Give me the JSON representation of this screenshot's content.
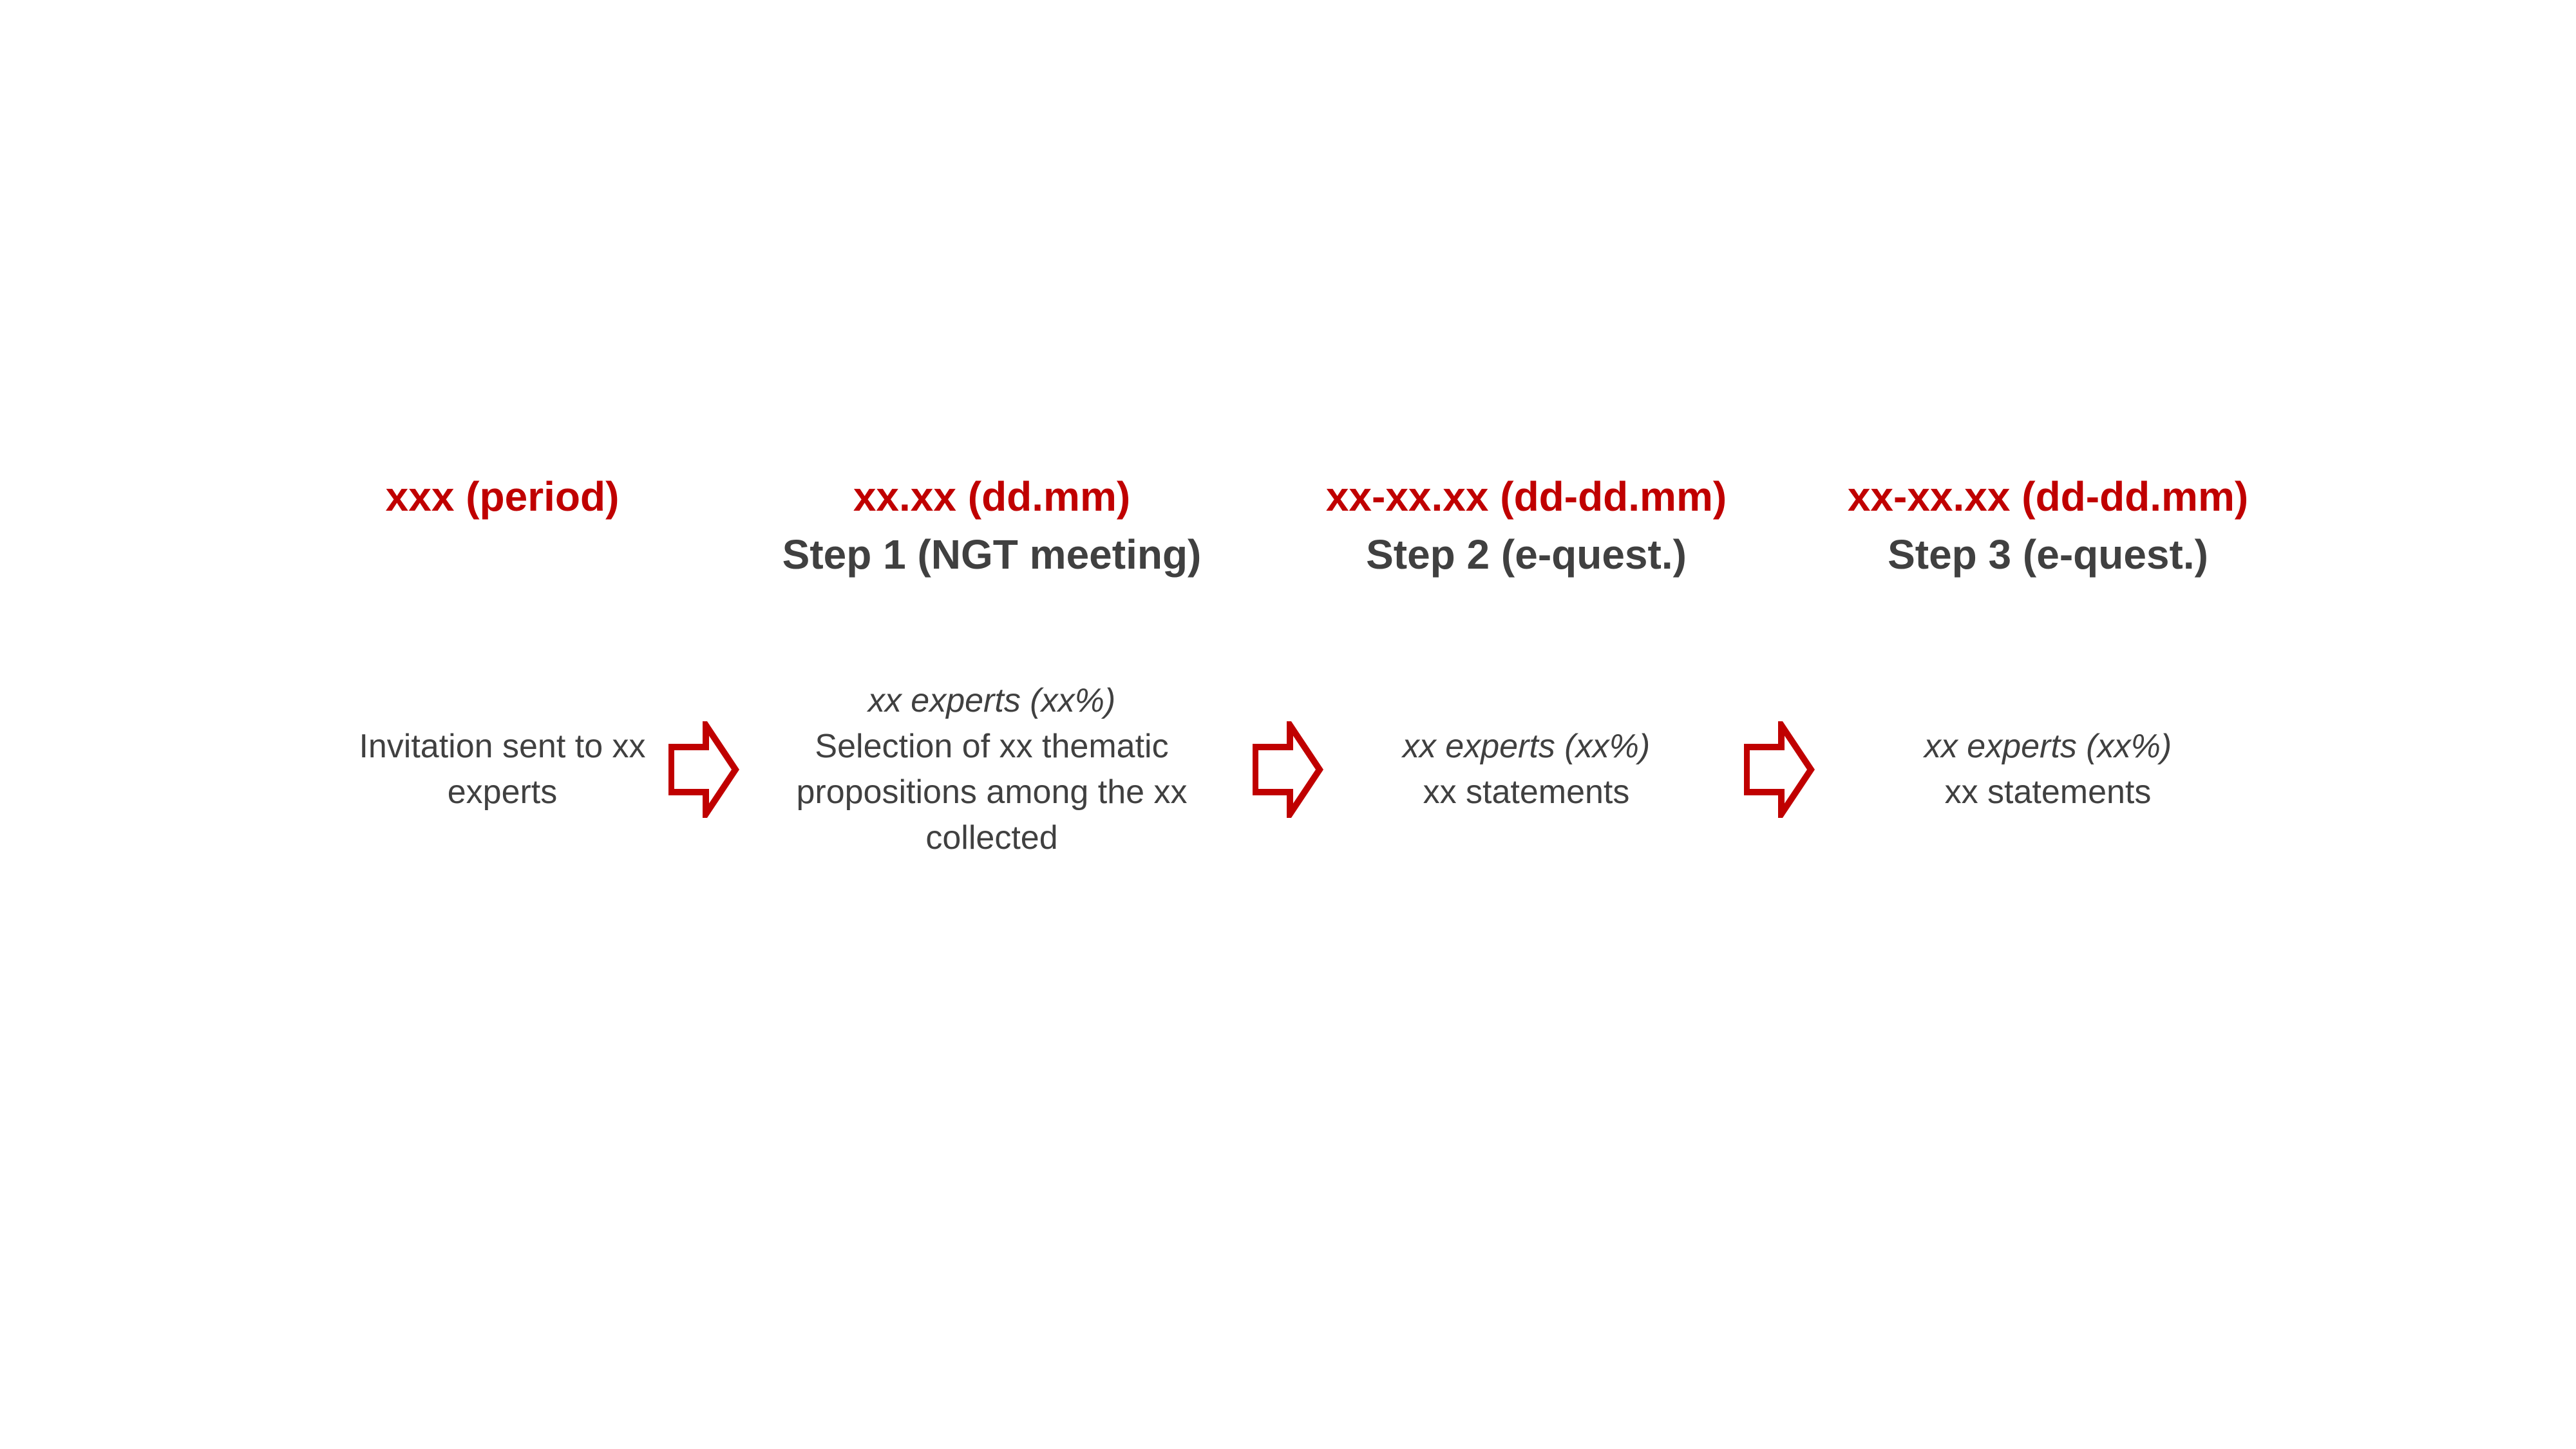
{
  "colors": {
    "accent": "#C00000",
    "text": "#404040",
    "background": "#FFFFFF"
  },
  "stages": [
    {
      "date": "xxx (period)",
      "step": "",
      "experts": "",
      "description": "Invitation sent to xx experts"
    },
    {
      "date": "xx.xx (dd.mm)",
      "step": "Step 1 (NGT meeting)",
      "experts": "xx experts (xx%)",
      "description": "Selection of xx thematic propositions among the xx collected"
    },
    {
      "date": "xx-xx.xx (dd-dd.mm)",
      "step": "Step 2 (e-quest.)",
      "experts": "xx experts (xx%)",
      "description": "xx statements"
    },
    {
      "date": "xx-xx.xx (dd-dd.mm)",
      "step": "Step 3 (e-quest.)",
      "experts": "xx experts (xx%)",
      "description": "xx statements"
    }
  ],
  "arrows": [
    {
      "icon": "right-arrow-outline-icon"
    },
    {
      "icon": "right-arrow-outline-icon"
    },
    {
      "icon": "right-arrow-outline-icon"
    }
  ]
}
